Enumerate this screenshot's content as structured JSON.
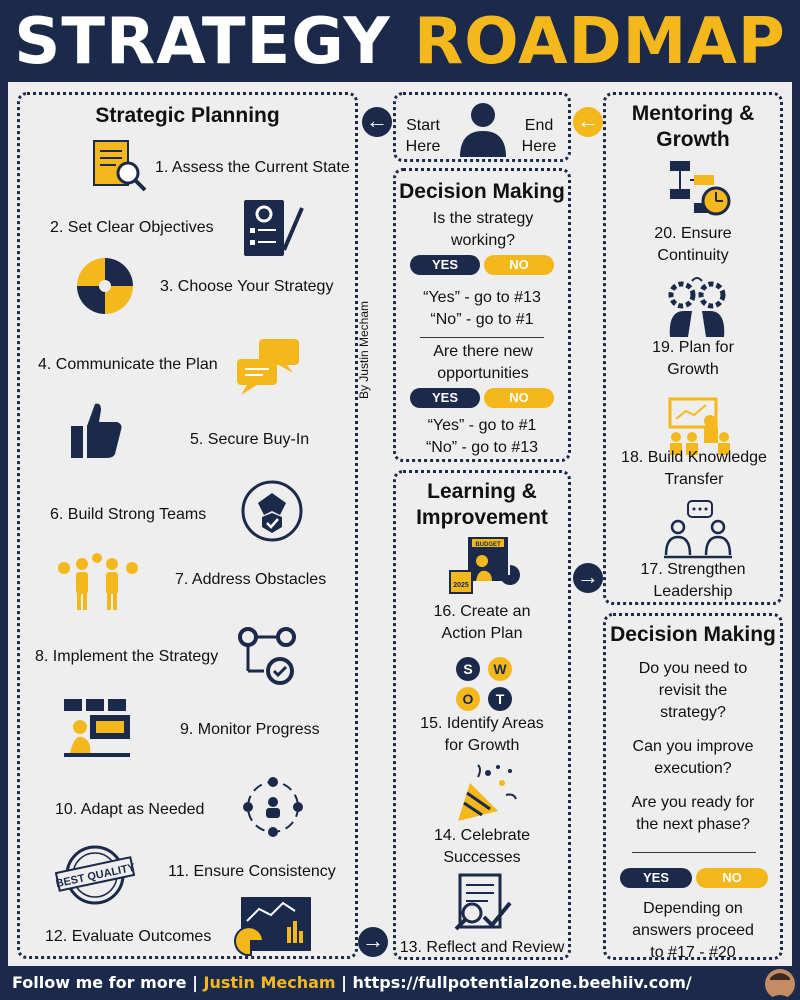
{
  "header": {
    "title_part1": "STRATEGY",
    "title_part2": "ROADMAP"
  },
  "colors": {
    "navy": "#1b2a4a",
    "yellow": "#f5b81c",
    "panel_bg": "#eeeeee"
  },
  "strategic_planning": {
    "title": "Strategic Planning",
    "steps": [
      {
        "label": "1. Assess the Current State",
        "icon": "document-magnifier-icon"
      },
      {
        "label": "2. Set Clear Objectives",
        "icon": "gear-checklist-icon"
      },
      {
        "label": "3. Choose Your Strategy",
        "icon": "strategy-quadrant-icon"
      },
      {
        "label": "4. Communicate the Plan",
        "icon": "chat-bubbles-icon"
      },
      {
        "label": "5. Secure Buy-In",
        "icon": "thumbs-up-icon"
      },
      {
        "label": "6. Build Strong Teams",
        "icon": "handshake-shield-icon"
      },
      {
        "label": "7. Address Obstacles",
        "icon": "people-lightning-icon"
      },
      {
        "label": "8. Implement the Strategy",
        "icon": "gears-flow-icon"
      },
      {
        "label": "9. Monitor Progress",
        "icon": "monitoring-desk-icon"
      },
      {
        "label": "10. Adapt as Needed",
        "icon": "person-cycle-icon"
      },
      {
        "label": "11. Ensure Consistency",
        "icon": "best-quality-badge-icon"
      },
      {
        "label": "12. Evaluate Outcomes",
        "icon": "analytics-dashboard-icon"
      }
    ]
  },
  "start_end": {
    "start": "Start Here",
    "end": "End Here",
    "icon": "person-icon"
  },
  "author_vertical": "By Justin Mecham",
  "decision_top": {
    "title": "Decision Making",
    "q1": "Is the strategy working?",
    "yes": "YES",
    "no": "NO",
    "q1_yes": "“Yes” - go to #13",
    "q1_no": "“No” - go to #1",
    "q2": "Are there new opportunities",
    "q2_yes": "“Yes” - go to #1",
    "q2_no": "“No” - go to #13"
  },
  "learning": {
    "title": "Learning & Improvement",
    "steps": [
      {
        "label": "16. Create an Action Plan",
        "icon": "budget-board-icon"
      },
      {
        "label": "15. Identify Areas for Growth",
        "icon": "swot-icon"
      },
      {
        "label": "14. Celebrate Successes",
        "icon": "party-popper-icon"
      },
      {
        "label": "13. Reflect and Review",
        "icon": "document-review-icon"
      }
    ],
    "swot": [
      "S",
      "W",
      "O",
      "T"
    ]
  },
  "mentoring": {
    "title": "Mentoring & Growth",
    "steps": [
      {
        "label": "20. Ensure Continuity",
        "icon": "flowchart-clock-icon"
      },
      {
        "label": "19. Plan for Growth",
        "icon": "heads-gears-icon"
      },
      {
        "label": "18. Build Knowledge Transfer",
        "icon": "presentation-icon"
      },
      {
        "label": "17. Strengthen Leadership",
        "icon": "discussion-icon"
      }
    ]
  },
  "decision_bottom": {
    "title": "Decision Making",
    "q1": "Do you need to revisit the strategy?",
    "q2": "Can you improve execution?",
    "q3": "Are you ready for the next phase?",
    "yes": "YES",
    "no": "NO",
    "note": "Depending on answers proceed to #17 - #20"
  },
  "footer": {
    "prefix": "Follow me for more | ",
    "name": "Justin Mecham",
    "suffix": " | https://fullpotentialzone.beehiiv.com/"
  }
}
